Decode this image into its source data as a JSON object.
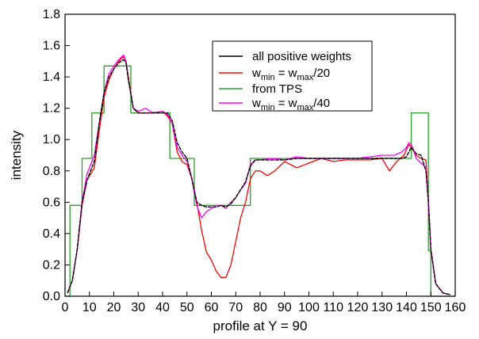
{
  "chart_data": {
    "type": "line",
    "title": "",
    "xlabel": "profile at Y = 90",
    "ylabel": "intensity",
    "xlim": [
      0,
      160
    ],
    "ylim": [
      0.0,
      1.8
    ],
    "xticks": [
      "0",
      "10",
      "20",
      "30",
      "40",
      "50",
      "60",
      "70",
      "80",
      "90",
      "100",
      "110",
      "120",
      "130",
      "140",
      "150",
      "160"
    ],
    "yticks": [
      "0.0",
      "0.2",
      "0.4",
      "0.6",
      "0.8",
      "1.0",
      "1.2",
      "1.4",
      "1.6",
      "1.8"
    ],
    "grid": false,
    "legend_position": "top-right",
    "series": [
      {
        "name": "all positive weights",
        "color": "#000000",
        "x": [
          1,
          3,
          5,
          7,
          9,
          12,
          14,
          16,
          18,
          20,
          22,
          24,
          25,
          26,
          28,
          30,
          35,
          40,
          42,
          44,
          46,
          48,
          50,
          52,
          54,
          56,
          58,
          60,
          62,
          64,
          66,
          68,
          70,
          72,
          74,
          76,
          78,
          80,
          85,
          90,
          95,
          100,
          110,
          120,
          130,
          135,
          138,
          140,
          141,
          142,
          143,
          144,
          146,
          147,
          148,
          149,
          150,
          152,
          155,
          158
        ],
        "y": [
          0.02,
          0.1,
          0.3,
          0.6,
          0.74,
          0.86,
          1.1,
          1.3,
          1.4,
          1.45,
          1.49,
          1.51,
          1.49,
          1.38,
          1.2,
          1.17,
          1.17,
          1.17,
          1.17,
          1.12,
          0.98,
          0.92,
          0.88,
          0.75,
          0.6,
          0.58,
          0.57,
          0.57,
          0.57,
          0.58,
          0.57,
          0.59,
          0.63,
          0.68,
          0.73,
          0.83,
          0.87,
          0.87,
          0.87,
          0.87,
          0.88,
          0.88,
          0.88,
          0.88,
          0.88,
          0.88,
          0.88,
          0.89,
          0.92,
          0.95,
          0.93,
          0.91,
          0.9,
          0.85,
          0.8,
          0.6,
          0.3,
          0.08,
          0.02,
          0.01
        ]
      },
      {
        "name": "w_min = w_max/20",
        "color": "#ff0000",
        "x": [
          1,
          3,
          5,
          7,
          9,
          12,
          14,
          16,
          18,
          20,
          22,
          24,
          25,
          26,
          28,
          30,
          35,
          40,
          42,
          44,
          46,
          48,
          50,
          52,
          54,
          56,
          58,
          60,
          62,
          64,
          66,
          68,
          70,
          72,
          74,
          76,
          78,
          80,
          83,
          86,
          90,
          95,
          100,
          105,
          110,
          115,
          120,
          125,
          130,
          133,
          136,
          139,
          141,
          142,
          144,
          146,
          148,
          149,
          150,
          152,
          155,
          158
        ],
        "y": [
          0.02,
          0.1,
          0.3,
          0.58,
          0.74,
          0.82,
          1.05,
          1.27,
          1.38,
          1.45,
          1.5,
          1.53,
          1.5,
          1.4,
          1.2,
          1.17,
          1.17,
          1.18,
          1.15,
          1.1,
          0.92,
          0.86,
          0.84,
          0.75,
          0.6,
          0.42,
          0.28,
          0.23,
          0.16,
          0.12,
          0.12,
          0.2,
          0.35,
          0.5,
          0.6,
          0.75,
          0.8,
          0.8,
          0.77,
          0.8,
          0.86,
          0.82,
          0.85,
          0.88,
          0.86,
          0.87,
          0.87,
          0.87,
          0.88,
          0.8,
          0.86,
          0.9,
          0.97,
          0.95,
          0.9,
          0.88,
          0.87,
          0.6,
          0.3,
          0.08,
          0.02,
          0.01
        ]
      },
      {
        "name": "from TPS",
        "color": "#2aa02a",
        "x": [
          0,
          2,
          2,
          7,
          7,
          11,
          11,
          16,
          16,
          27,
          27,
          43,
          43,
          47,
          47,
          53,
          53,
          76,
          76,
          142,
          142,
          149,
          149,
          150,
          150,
          160
        ],
        "y": [
          0,
          0,
          0.58,
          0.58,
          0.88,
          0.88,
          1.17,
          1.17,
          1.47,
          1.47,
          1.17,
          1.17,
          0.88,
          0.88,
          0.88,
          0.88,
          0.58,
          0.58,
          0.88,
          0.88,
          1.17,
          1.17,
          0.29,
          0.29,
          0,
          0
        ]
      },
      {
        "name": "w_min = w_max/40",
        "color": "#ff00ff",
        "x": [
          1,
          3,
          5,
          7,
          9,
          12,
          14,
          16,
          18,
          20,
          22,
          24,
          25,
          26,
          28,
          30,
          33,
          36,
          40,
          42,
          44,
          46,
          48,
          50,
          52,
          54,
          56,
          58,
          60,
          62,
          64,
          66,
          68,
          70,
          72,
          74,
          76,
          78,
          80,
          85,
          90,
          95,
          100,
          110,
          120,
          130,
          135,
          138,
          140,
          141,
          142,
          143,
          144,
          146,
          148,
          149,
          150,
          152,
          155,
          158
        ],
        "y": [
          0.02,
          0.1,
          0.3,
          0.6,
          0.78,
          0.9,
          1.1,
          1.3,
          1.42,
          1.47,
          1.51,
          1.54,
          1.5,
          1.38,
          1.2,
          1.18,
          1.2,
          1.17,
          1.18,
          1.16,
          1.1,
          0.95,
          0.9,
          0.86,
          0.75,
          0.58,
          0.5,
          0.54,
          0.56,
          0.58,
          0.58,
          0.56,
          0.6,
          0.63,
          0.68,
          0.72,
          0.84,
          0.87,
          0.87,
          0.88,
          0.87,
          0.89,
          0.88,
          0.88,
          0.88,
          0.9,
          0.9,
          0.92,
          0.95,
          0.98,
          0.97,
          0.93,
          0.88,
          0.85,
          0.82,
          0.6,
          0.3,
          0.08,
          0.02,
          0.01
        ]
      }
    ]
  }
}
